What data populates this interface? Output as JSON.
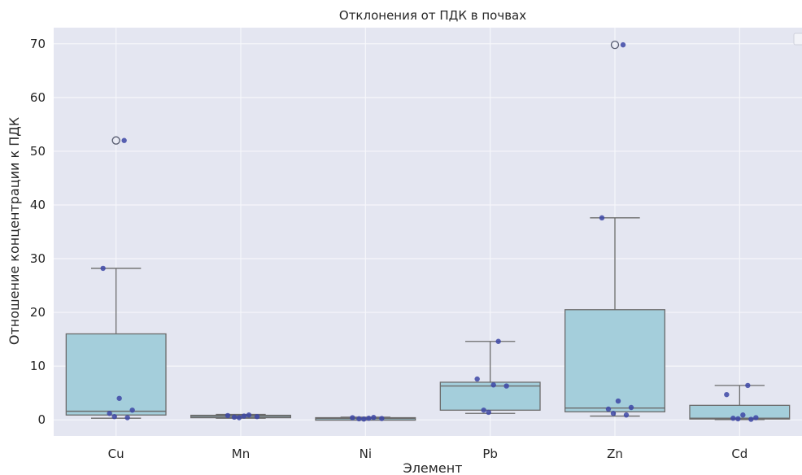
{
  "chart_data": {
    "type": "box",
    "title": "Отклонения от ПДК в почвах",
    "xlabel": "Элемент",
    "ylabel": "Отношение концентрации к ПДК",
    "ylim": [
      -3,
      73
    ],
    "yticks": [
      0,
      10,
      20,
      30,
      40,
      50,
      60,
      70
    ],
    "grid": true,
    "legend": "top-right (empty)",
    "colors": {
      "background": "#e4e6f1",
      "grid": "#f6f7fb",
      "box_fill": "#a4cedb",
      "box_line": "#6b6b6b",
      "points": "#3d46a6"
    },
    "categories": [
      "Cu",
      "Mn",
      "Ni",
      "Pb",
      "Zn",
      "Cd"
    ],
    "boxes": [
      {
        "category": "Cu",
        "whisker_low": 0.3,
        "q1": 0.9,
        "median": 1.6,
        "q3": 16.0,
        "whisker_high": 28.2,
        "outliers": [
          52.0
        ]
      },
      {
        "category": "Mn",
        "whisker_low": 0.3,
        "q1": 0.45,
        "median": 0.65,
        "q3": 0.85,
        "whisker_high": 1.0,
        "outliers": []
      },
      {
        "category": "Ni",
        "whisker_low": 0.1,
        "q1": 0.2,
        "median": 0.25,
        "q3": 0.4,
        "whisker_high": 0.5,
        "outliers": []
      },
      {
        "category": "Pb",
        "whisker_low": 1.2,
        "q1": 1.8,
        "median": 6.3,
        "q3": 7.0,
        "whisker_high": 14.6,
        "outliers": []
      },
      {
        "category": "Zn",
        "whisker_low": 0.7,
        "q1": 1.5,
        "median": 2.2,
        "q3": 20.5,
        "whisker_high": 37.6,
        "outliers": [
          69.8
        ]
      },
      {
        "category": "Cd",
        "whisker_low": 0.05,
        "q1": 0.15,
        "median": 0.3,
        "q3": 2.7,
        "whisker_high": 6.4,
        "outliers": []
      }
    ],
    "points": [
      {
        "category": "Cu",
        "values": [
          52.0,
          28.2,
          4.0,
          1.8,
          1.2,
          0.6,
          0.4
        ]
      },
      {
        "category": "Mn",
        "values": [
          0.9,
          0.8,
          0.7,
          0.6,
          0.5,
          0.4
        ]
      },
      {
        "category": "Ni",
        "values": [
          0.45,
          0.4,
          0.3,
          0.25,
          0.2,
          0.15
        ]
      },
      {
        "category": "Pb",
        "values": [
          14.6,
          7.6,
          6.5,
          6.3,
          1.8,
          1.4
        ]
      },
      {
        "category": "Zn",
        "values": [
          69.8,
          37.6,
          3.5,
          2.3,
          2.0,
          1.2,
          0.9
        ]
      },
      {
        "category": "Cd",
        "values": [
          6.4,
          4.7,
          0.9,
          0.4,
          0.3,
          0.2,
          0.1
        ]
      }
    ]
  }
}
